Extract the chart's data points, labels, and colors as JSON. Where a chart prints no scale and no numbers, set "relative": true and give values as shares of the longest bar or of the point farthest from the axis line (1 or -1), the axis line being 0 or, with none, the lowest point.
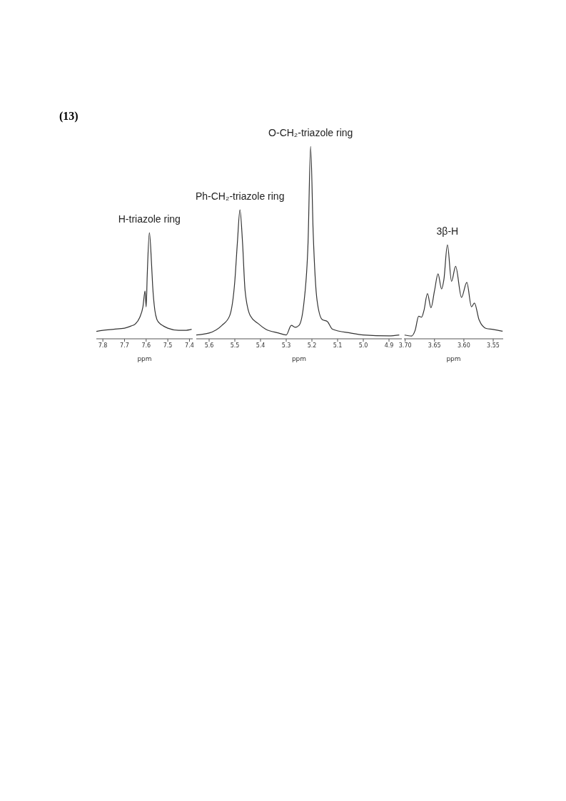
{
  "chart_data": [
    {
      "type": "line",
      "relative": true,
      "xlabel": "ppm",
      "xlim": [
        7.83,
        7.385
      ],
      "xticks": [
        7.8,
        7.7,
        7.6,
        7.5,
        7.4
      ],
      "annotations": [
        "(13)",
        {
          "text": "H-triazole ring",
          "x": 7.585,
          "y": 1
        }
      ],
      "series": [
        {
          "color": "#333333",
          "x": [
            7.83,
            7.8,
            7.75,
            7.7,
            7.67,
            7.65,
            7.63,
            7.615,
            7.605,
            7.6,
            7.595,
            7.585,
            7.575,
            7.57,
            7.56,
            7.55,
            7.54,
            7.52,
            7.5,
            7.45,
            7.42,
            7.39
          ],
          "values": [
            0.07,
            0.08,
            0.09,
            0.1,
            0.12,
            0.14,
            0.2,
            0.3,
            0.45,
            0.3,
            0.6,
            1,
            0.7,
            0.5,
            0.27,
            0.18,
            0.15,
            0.12,
            0.1,
            0.08,
            0.08,
            0.09
          ]
        }
      ]
    },
    {
      "type": "line",
      "relative": true,
      "xlabel": "ppm",
      "xlim": [
        5.65,
        4.85
      ],
      "xticks": [
        5.6,
        5.5,
        5.4,
        5.3,
        5.2,
        5.1,
        {
          "value": 5,
          "label": "5.0"
        },
        4.9
      ],
      "annotations": [
        {
          "text": "Ph-CH₂-triazole ring",
          "x": 5.48,
          "y": 0.67
        },
        {
          "text": "O-CH₂-triazole ring",
          "x": 5.205,
          "y": 1
        }
      ],
      "series": [
        {
          "color": "#333333",
          "x": [
            5.65,
            5.6,
            5.55,
            5.52,
            5.5,
            5.49,
            5.48,
            5.47,
            5.46,
            5.44,
            5.41,
            5.38,
            5.33,
            5.3,
            5.28,
            5.265,
            5.25,
            5.23,
            5.215,
            5.205,
            5.195,
            5.18,
            5.16,
            5.14,
            5.12,
            5.05,
            5,
            4.9,
            4.86
          ],
          "values": [
            0.02,
            0.03,
            0.07,
            0.12,
            0.3,
            0.5,
            0.67,
            0.5,
            0.25,
            0.12,
            0.08,
            0.05,
            0.03,
            0.02,
            0.07,
            0.06,
            0.07,
            0.2,
            0.5,
            1,
            0.55,
            0.2,
            0.1,
            0.09,
            0.05,
            0.03,
            0.02,
            0.015,
            0.02
          ]
        }
      ]
    },
    {
      "type": "line",
      "relative": true,
      "xlabel": "ppm",
      "xlim": [
        3.702,
        3.533
      ],
      "xticks": [
        {
          "value": 3.7,
          "label": "3.70"
        },
        3.65,
        {
          "value": 3.6,
          "label": "3.60"
        },
        3.55
      ],
      "annotations": [
        {
          "text": "3β-H",
          "x": 3.628,
          "y": 1
        }
      ],
      "series": [
        {
          "color": "#333333",
          "x": [
            3.701,
            3.689,
            3.683,
            3.677,
            3.672,
            3.668,
            3.662,
            3.656,
            3.65,
            3.644,
            3.638,
            3.634,
            3.628,
            3.621,
            3.614,
            3.604,
            3.595,
            3.587,
            3.582,
            3.574,
            3.562,
            3.55,
            3.534
          ],
          "values": [
            0.04,
            0.03,
            0.09,
            0.24,
            0.23,
            0.3,
            0.48,
            0.33,
            0.51,
            0.69,
            0.53,
            0.63,
            1,
            0.61,
            0.77,
            0.44,
            0.6,
            0.34,
            0.38,
            0.2,
            0.11,
            0.1,
            0.08
          ]
        }
      ]
    }
  ]
}
